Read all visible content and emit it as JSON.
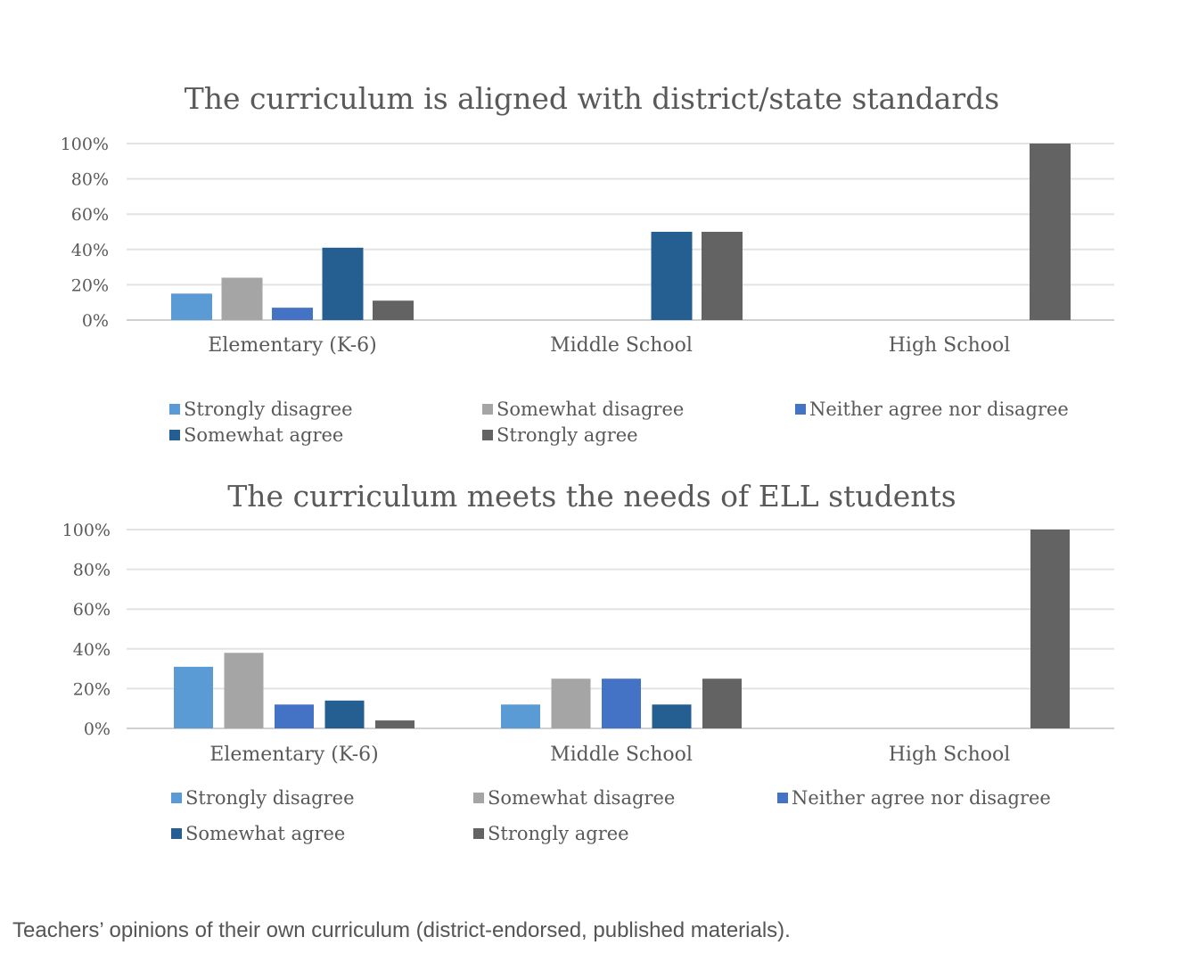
{
  "chart_data": [
    {
      "type": "bar",
      "title": "The curriculum is aligned with district/state standards",
      "xlabel": "",
      "ylabel": "",
      "ylim": [
        0,
        100
      ],
      "y_ticks": [
        "0%",
        "20%",
        "40%",
        "60%",
        "80%",
        "100%"
      ],
      "categories": [
        "Elementary (K-6)",
        "Middle School",
        "High School"
      ],
      "grid": true,
      "legend_position": "bottom",
      "series": [
        {
          "name": "Strongly disagree",
          "color": "#5b9bd5",
          "values": [
            15,
            0,
            0
          ]
        },
        {
          "name": "Somewhat disagree",
          "color": "#a5a5a5",
          "values": [
            24,
            0,
            0
          ]
        },
        {
          "name": "Neither agree nor disagree",
          "color": "#4472c4",
          "values": [
            7,
            0,
            0
          ]
        },
        {
          "name": "Somewhat agree",
          "color": "#255e91",
          "values": [
            41,
            50,
            0
          ]
        },
        {
          "name": "Strongly agree",
          "color": "#636363",
          "values": [
            11,
            50,
            100
          ]
        }
      ]
    },
    {
      "type": "bar",
      "title": "The curriculum meets the needs of ELL students",
      "xlabel": "",
      "ylabel": "",
      "ylim": [
        0,
        100
      ],
      "y_ticks": [
        "0%",
        "20%",
        "40%",
        "60%",
        "80%",
        "100%"
      ],
      "categories": [
        "Elementary (K-6)",
        "Middle School",
        "High School"
      ],
      "grid": true,
      "legend_position": "bottom",
      "series": [
        {
          "name": "Strongly disagree",
          "color": "#5b9bd5",
          "values": [
            31,
            12,
            0
          ]
        },
        {
          "name": "Somewhat disagree",
          "color": "#a5a5a5",
          "values": [
            38,
            25,
            0
          ]
        },
        {
          "name": "Neither agree nor disagree",
          "color": "#4472c4",
          "values": [
            12,
            25,
            0
          ]
        },
        {
          "name": "Somewhat agree",
          "color": "#255e91",
          "values": [
            14,
            12,
            0
          ]
        },
        {
          "name": "Strongly agree",
          "color": "#636363",
          "values": [
            4,
            25,
            100
          ]
        }
      ]
    }
  ],
  "caption": "Teachers’ opinions of their own curriculum (district-endorsed, published materials)."
}
